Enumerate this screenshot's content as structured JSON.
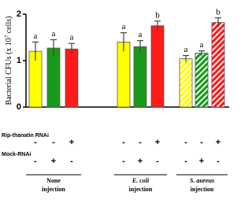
{
  "chart_data": {
    "type": "bar",
    "y_label": "Bacterial CFUs (x 10",
    "y_label_sup": "7",
    "y_label_end": " cells)",
    "ylim": [
      0,
      2
    ],
    "yticks": [
      0,
      1,
      2
    ],
    "colors": [
      "#ffff00",
      "#1a9a1a",
      "#ff1a1a"
    ],
    "groups": [
      {
        "label": [
          "None",
          "injection"
        ],
        "italic": false,
        "hatched": false,
        "values": [
          1.2,
          1.27,
          1.25
        ],
        "errors": [
          0.2,
          0.18,
          0.12
        ],
        "letters": [
          "a",
          "a",
          "a"
        ]
      },
      {
        "label": [
          "E. coli",
          "injection"
        ],
        "italic": true,
        "hatched": false,
        "values": [
          1.4,
          1.3,
          1.75
        ],
        "errors": [
          0.2,
          0.13,
          0.1
        ],
        "letters": [
          "a",
          "a",
          "b"
        ]
      },
      {
        "label": [
          "S. aureus",
          "injection"
        ],
        "italic": true,
        "hatched": true,
        "values": [
          1.04,
          1.16,
          1.82
        ],
        "errors": [
          0.07,
          0.05,
          0.1
        ],
        "letters": [
          "a",
          "a",
          "b"
        ]
      }
    ],
    "treatments": [
      {
        "name": "Rip-thanatin RNAi",
        "signs": [
          "-",
          "-",
          "+",
          "-",
          "-",
          "+",
          "-",
          "-",
          "+"
        ]
      },
      {
        "name": "Mock-RNAi",
        "signs": [
          "-",
          "+",
          "-",
          "-",
          "+",
          "-",
          "-",
          "+",
          "-"
        ]
      }
    ]
  }
}
